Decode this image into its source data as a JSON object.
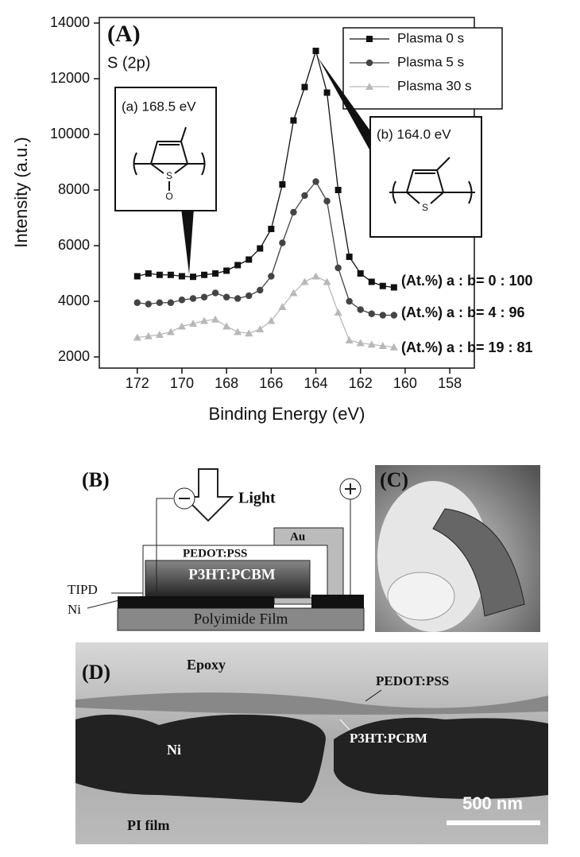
{
  "chart_data": {
    "type": "line",
    "panel_label": "(A)",
    "subtitle": "S (2p)",
    "x_label": "Binding Energy (eV)",
    "y_label": "Intensity (a.u.)",
    "x": [
      172,
      171.5,
      171,
      170.5,
      170,
      169.5,
      169,
      168.5,
      168,
      167.5,
      167,
      166.5,
      166,
      165.5,
      165,
      164.5,
      164,
      163.5,
      163,
      162.5,
      162,
      161.5,
      161,
      160.5
    ],
    "series": [
      {
        "name": "Plasma 0 s",
        "color": "#111111",
        "marker": "square",
        "values": [
          4900,
          5000,
          4950,
          4950,
          4900,
          4880,
          4950,
          5000,
          5100,
          5300,
          5500,
          5900,
          6600,
          8200,
          10500,
          11700,
          13000,
          11500,
          8000,
          5600,
          5000,
          4700,
          4550,
          4500
        ]
      },
      {
        "name": "Plasma 5 s",
        "color": "#444444",
        "marker": "circle",
        "values": [
          3950,
          3900,
          3950,
          3950,
          4050,
          4100,
          4150,
          4300,
          4150,
          4100,
          4200,
          4400,
          4900,
          6100,
          7200,
          7800,
          8300,
          7600,
          5200,
          4000,
          3700,
          3550,
          3500,
          3500
        ]
      },
      {
        "name": "Plasma 30 s",
        "color": "#b8b8b8",
        "marker": "triangle",
        "values": [
          2700,
          2750,
          2800,
          2900,
          3100,
          3200,
          3300,
          3350,
          3100,
          2900,
          2850,
          3000,
          3300,
          3800,
          4300,
          4700,
          4900,
          4700,
          3600,
          2600,
          2500,
          2450,
          2400,
          2350
        ]
      }
    ],
    "xlim": [
      173.7,
      156.9
    ],
    "xticks": [
      172,
      170,
      168,
      166,
      164,
      162,
      160,
      158
    ],
    "ylim": [
      1600,
      14200
    ],
    "yticks": [
      2000,
      4000,
      6000,
      8000,
      10000,
      12000,
      14000
    ],
    "legend": "top-right",
    "annotations": [
      "(a) 168.5 eV",
      "(b) 164.0 eV",
      "(At.%) a : b= 0 : 100",
      "(At.%) a : b= 4 : 96",
      "(At.%) a : b= 19 : 81"
    ],
    "structure_atoms": [
      "S",
      "O",
      "S"
    ]
  },
  "panel_b": {
    "label": "(B)",
    "light": "Light",
    "au": "Au",
    "pedot": "PEDOT:PSS",
    "p3ht": "P3HT:PCBM",
    "tipd": "TIPD",
    "ni": "Ni",
    "substrate": "Polyimide Film"
  },
  "panel_c": {
    "label": "(C)"
  },
  "panel_d": {
    "label": "(D)",
    "epoxy": "Epoxy",
    "pedot": "PEDOT:PSS",
    "p3ht": "P3HT:PCBM",
    "ni": "Ni",
    "pi": "PI film",
    "scale": "500 nm"
  }
}
